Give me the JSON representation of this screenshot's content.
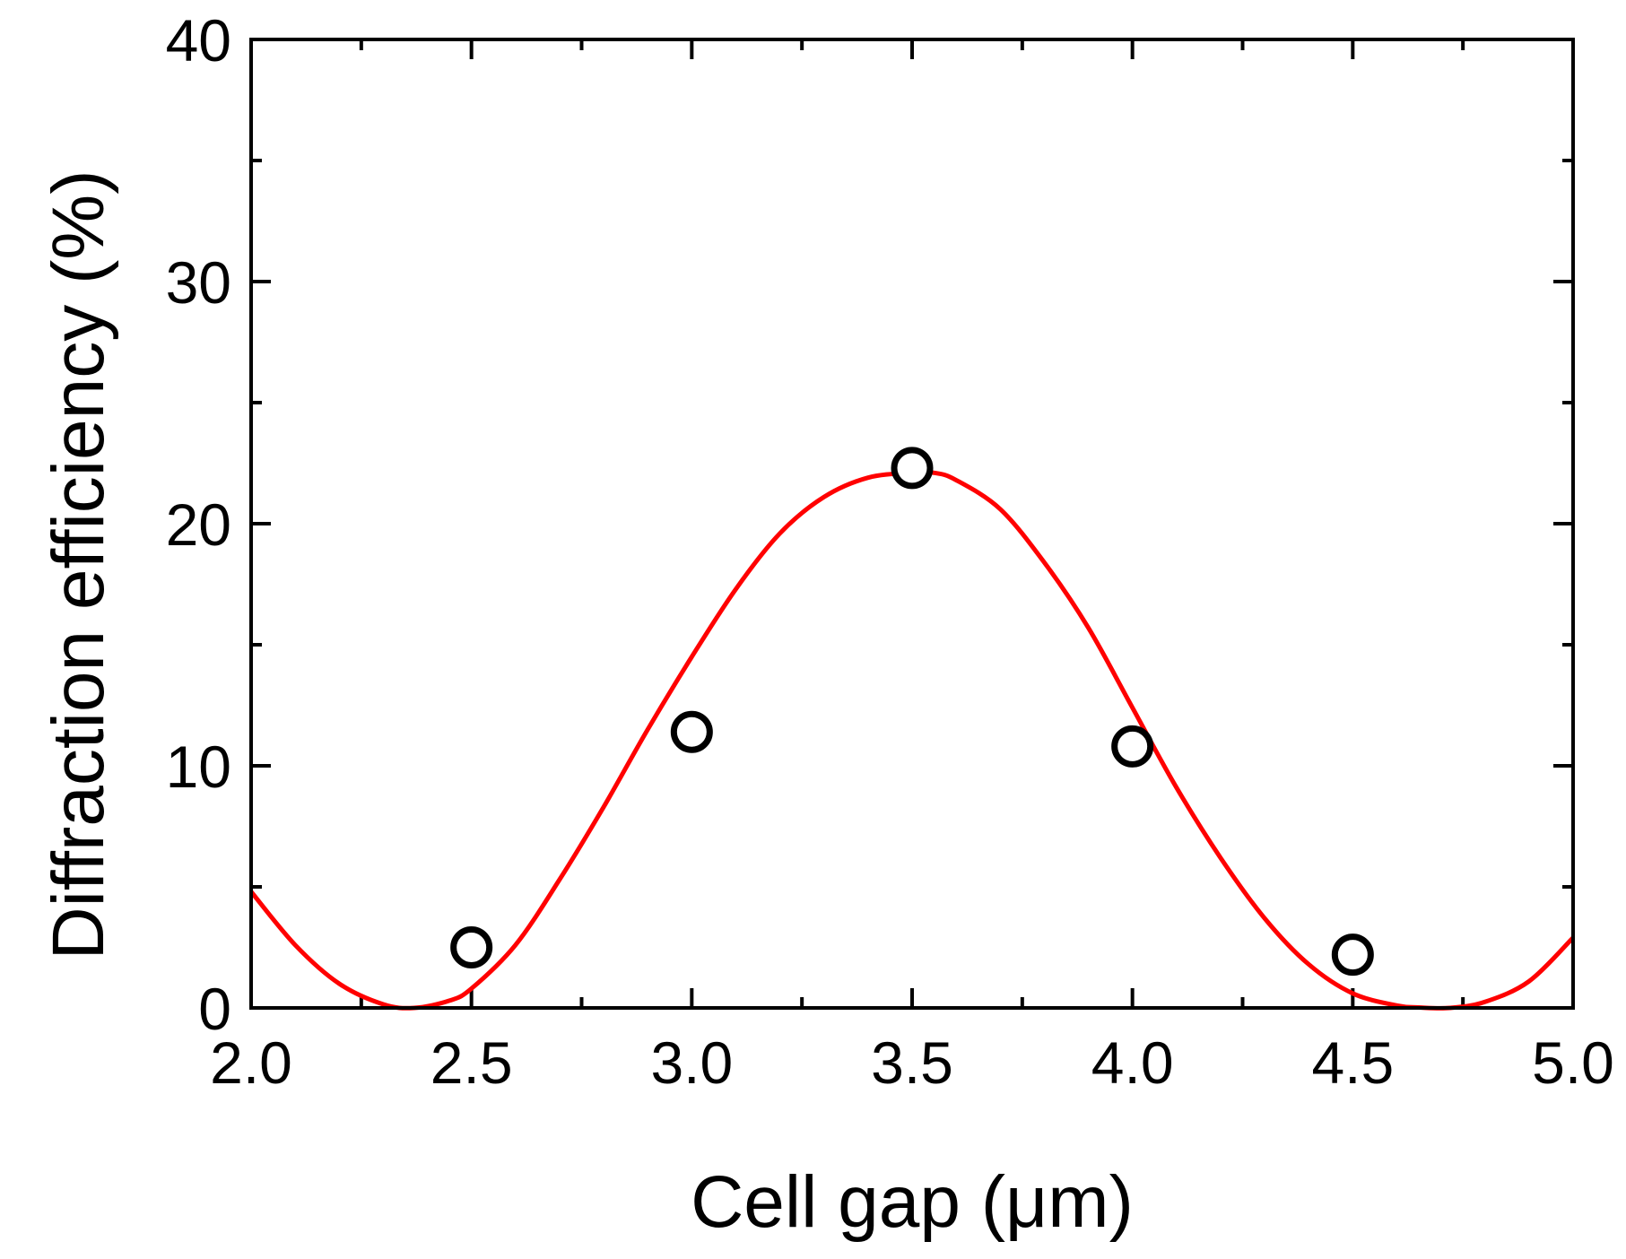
{
  "chart_data": {
    "type": "scatter",
    "xlabel": "Cell gap (μm)",
    "ylabel": "Diffraction efficiency (%)",
    "xlim": [
      2.0,
      5.0
    ],
    "ylim": [
      0,
      40
    ],
    "x_ticks": [
      "2.0",
      "2.5",
      "3.0",
      "3.5",
      "4.0",
      "4.5",
      "5.0"
    ],
    "y_ticks": [
      "0",
      "10",
      "20",
      "30",
      "40"
    ],
    "grid": false,
    "legend": "none",
    "series": [
      {
        "kind": "markers",
        "marker": "open-circle",
        "color": "#000000",
        "x": [
          2.5,
          3.0,
          3.5,
          4.0,
          4.5
        ],
        "y": [
          2.5,
          11.4,
          22.3,
          10.8,
          2.2
        ]
      },
      {
        "kind": "line",
        "color": "#ff0000",
        "x": [
          2.0,
          2.1,
          2.2,
          2.3,
          2.37,
          2.45,
          2.5,
          2.6,
          2.7,
          2.8,
          2.9,
          3.0,
          3.1,
          3.2,
          3.3,
          3.4,
          3.5,
          3.55,
          3.6,
          3.7,
          3.8,
          3.9,
          4.0,
          4.1,
          4.2,
          4.3,
          4.4,
          4.5,
          4.6,
          4.65,
          4.72,
          4.8,
          4.9,
          5.0
        ],
        "y": [
          4.8,
          2.6,
          1.0,
          0.15,
          0.0,
          0.3,
          0.8,
          2.6,
          5.3,
          8.3,
          11.5,
          14.5,
          17.3,
          19.6,
          21.1,
          21.9,
          22.1,
          22.1,
          21.8,
          20.6,
          18.4,
          15.7,
          12.4,
          9.1,
          6.2,
          3.7,
          1.8,
          0.6,
          0.1,
          0.02,
          0.0,
          0.25,
          1.1,
          2.9
        ]
      }
    ]
  }
}
